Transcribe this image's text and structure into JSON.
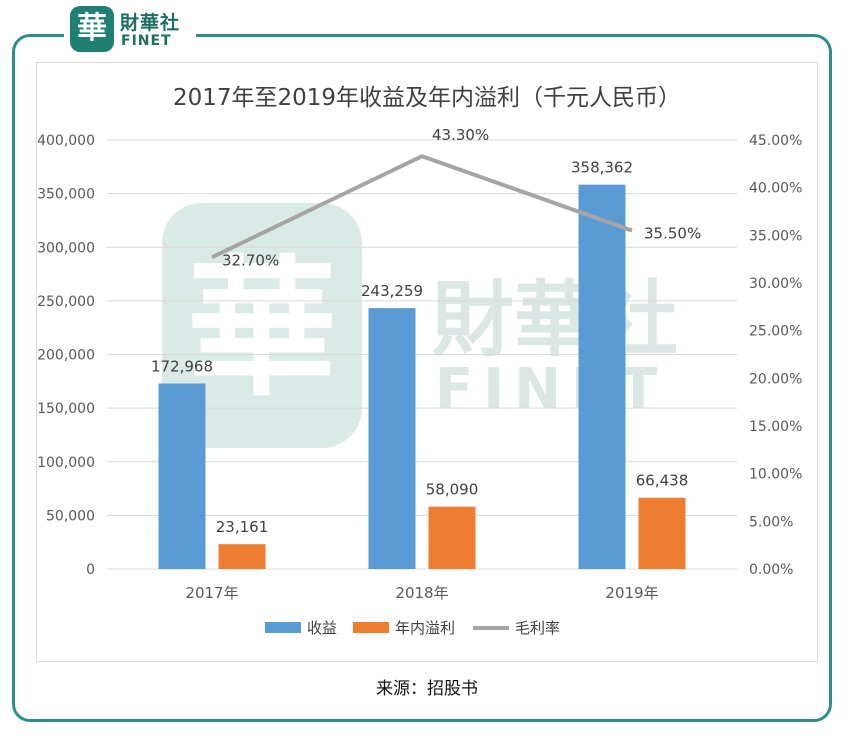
{
  "brand": {
    "badge_glyph": "華",
    "name_cn": "財華社",
    "name_en": "FINET",
    "accent_color": "#1e7f72",
    "frame_color": "#2f8f86"
  },
  "watermark": {
    "glyph": "華",
    "name_cn": "財華社",
    "name_en": "FINET"
  },
  "chart_data": {
    "type": "bar",
    "title": "2017年至2019年收益及年内溢利（千元人民币）",
    "categories": [
      "2017年",
      "2018年",
      "2019年"
    ],
    "series": [
      {
        "name": "收益",
        "type": "bar",
        "axis": "left",
        "color": "#5b9bd5",
        "values": [
          172968,
          243259,
          358362
        ],
        "labels": [
          "172,968",
          "243,259",
          "358,362"
        ]
      },
      {
        "name": "年内溢利",
        "type": "bar",
        "axis": "left",
        "color": "#ed7d31",
        "values": [
          23161,
          58090,
          66438
        ],
        "labels": [
          "23,161",
          "58,090",
          "66,438"
        ]
      },
      {
        "name": "毛利率",
        "type": "line",
        "axis": "right",
        "color": "#a5a5a5",
        "values": [
          32.7,
          43.3,
          35.5
        ],
        "labels": [
          "32.70%",
          "43.30%",
          "35.50%"
        ]
      }
    ],
    "left_axis": {
      "ylim": [
        0,
        400000
      ],
      "ticks": [
        "0",
        "50,000",
        "100,000",
        "150,000",
        "200,000",
        "250,000",
        "300,000",
        "350,000",
        "400,000"
      ]
    },
    "right_axis": {
      "ylim": [
        0,
        45
      ],
      "ticks": [
        "0.00%",
        "5.00%",
        "10.00%",
        "15.00%",
        "20.00%",
        "25.00%",
        "30.00%",
        "35.00%",
        "40.00%",
        "45.00%"
      ]
    },
    "grid": true,
    "legend_position": "bottom"
  },
  "source": "来源：招股书"
}
